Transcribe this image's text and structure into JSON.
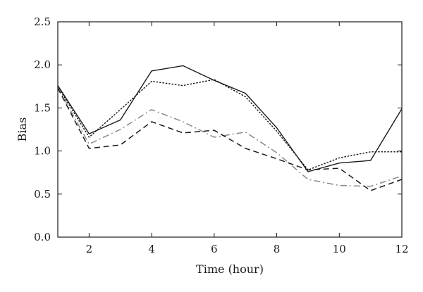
{
  "chart_data": {
    "type": "line",
    "xlabel": "Time (hour)",
    "ylabel": "Bias",
    "xlim": [
      1,
      12
    ],
    "ylim": [
      0,
      2.5
    ],
    "xticks": [
      2,
      4,
      6,
      8,
      10,
      12
    ],
    "xtick_labels": [
      "2",
      "4",
      "6",
      "8",
      "10",
      "12"
    ],
    "yticks": [
      0,
      0.5,
      1,
      1.5,
      2,
      2.5
    ],
    "ytick_labels": [
      "0.0",
      "0.5",
      "1.0",
      "1.5",
      "2.0",
      "2.5"
    ],
    "grid": false,
    "legend": false,
    "x": [
      1,
      2,
      3,
      4,
      5,
      6,
      7,
      8,
      9,
      10,
      11,
      12
    ],
    "series": [
      {
        "style": "solid",
        "color": "#1a1a1a",
        "values": [
          1.76,
          1.2,
          1.36,
          1.93,
          1.99,
          1.82,
          1.67,
          1.27,
          0.76,
          0.86,
          0.89,
          1.49
        ]
      },
      {
        "style": "dotted",
        "color": "#1a1a1a",
        "values": [
          1.75,
          1.16,
          1.48,
          1.81,
          1.76,
          1.83,
          1.63,
          1.23,
          0.78,
          0.92,
          0.99,
          0.99
        ]
      },
      {
        "style": "dashdot",
        "color": "#888888",
        "values": [
          1.74,
          1.08,
          1.25,
          1.48,
          1.34,
          1.16,
          1.22,
          0.98,
          0.67,
          0.6,
          0.59,
          0.71
        ]
      },
      {
        "style": "dashed",
        "color": "#1a1a1a",
        "values": [
          1.73,
          1.03,
          1.07,
          1.34,
          1.21,
          1.24,
          1.03,
          0.91,
          0.78,
          0.8,
          0.54,
          0.67
        ]
      }
    ]
  }
}
